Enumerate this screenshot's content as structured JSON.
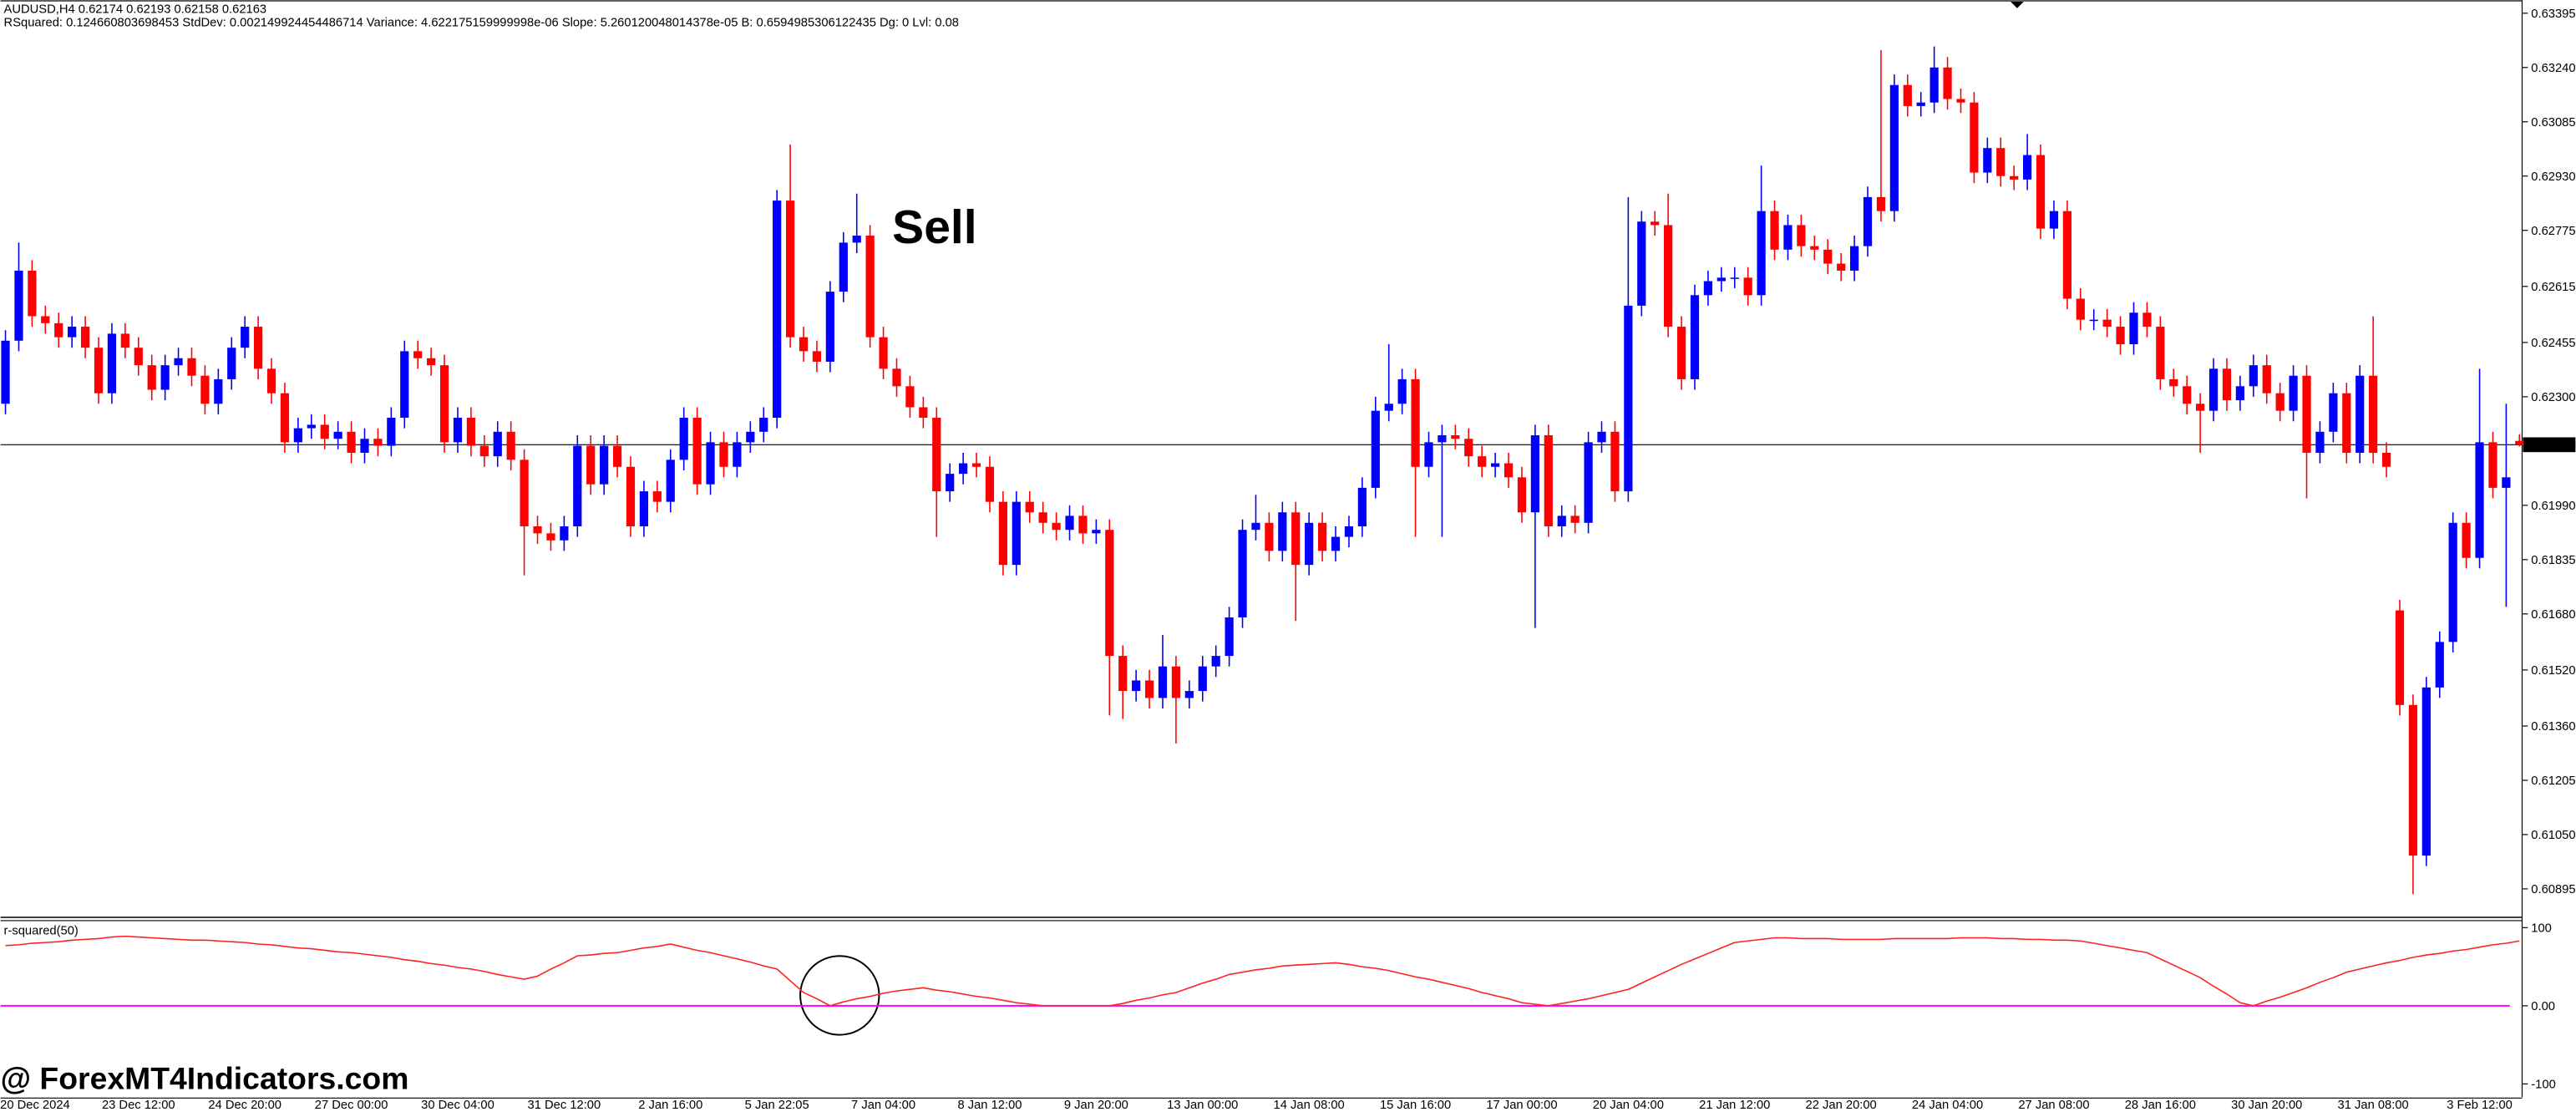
{
  "header": {
    "symbol_line": "AUDUSD,H4  0.62174 0.62193 0.62158 0.62163",
    "stats_line": "RSquared: 0.124660803698453 StdDev: 0.002149924454486714 Variance: 4.622175159999998e-06 Slope: 5.260120048014378e-05 B: 0.6594985306122435 Dg: 0 Lvl: 0.08"
  },
  "watermark": "@ ForexMT4Indicators.com",
  "chart_data": [
    {
      "type": "candlestick",
      "annotation": "Sell",
      "up_color": "#0000ff",
      "down_color": "#ff0000",
      "current_price": 0.62163,
      "ylim": [
        0.60816,
        0.63428
      ],
      "yticks": [
        0.63395,
        {
          "value": 0.6324,
          "label": "0.63240"
        },
        0.63085,
        {
          "value": 0.6293,
          "label": "0.62930"
        },
        0.62775,
        0.62615,
        0.62455,
        {
          "value": 0.623,
          "label": "0.62300"
        },
        {
          "value": 0.6199,
          "label": "0.61990"
        },
        0.61835,
        {
          "value": 0.6168,
          "label": "0.61680"
        },
        {
          "value": 0.6152,
          "label": "0.61520"
        },
        {
          "value": 0.6136,
          "label": "0.61360"
        },
        0.61205,
        {
          "value": 0.6105,
          "label": "0.61050"
        },
        0.60895
      ],
      "categories": [
        null,
        null,
        "20 Dec 2024",
        null,
        null,
        null,
        null,
        null,
        null,
        null,
        "23 Dec 12:00",
        null,
        null,
        null,
        null,
        null,
        null,
        null,
        "24 Dec 20:00",
        null,
        null,
        null,
        null,
        null,
        null,
        null,
        "27 Dec 00:00",
        null,
        null,
        null,
        null,
        null,
        null,
        null,
        "30 Dec 04:00",
        null,
        null,
        null,
        null,
        null,
        null,
        null,
        "31 Dec 12:00",
        null,
        null,
        null,
        null,
        null,
        null,
        null,
        "2 Jan 16:00",
        null,
        null,
        null,
        null,
        null,
        null,
        null,
        "5 Jan 22:05",
        null,
        null,
        null,
        null,
        null,
        null,
        null,
        "7 Jan 04:00",
        null,
        null,
        null,
        null,
        null,
        null,
        null,
        "8 Jan 12:00",
        null,
        null,
        null,
        null,
        null,
        null,
        null,
        "9 Jan 20:00",
        null,
        null,
        null,
        null,
        null,
        null,
        null,
        "13 Jan 00:00",
        null,
        null,
        null,
        null,
        null,
        null,
        null,
        "14 Jan 08:00",
        null,
        null,
        null,
        null,
        null,
        null,
        null,
        "15 Jan 16:00",
        null,
        null,
        null,
        null,
        null,
        null,
        null,
        "17 Jan 00:00",
        null,
        null,
        null,
        null,
        null,
        null,
        null,
        "20 Jan 04:00",
        null,
        null,
        null,
        null,
        null,
        null,
        null,
        "21 Jan 12:00",
        null,
        null,
        null,
        null,
        null,
        null,
        null,
        "22 Jan 20:00",
        null,
        null,
        null,
        null,
        null,
        null,
        null,
        "24 Jan 04:00",
        null,
        null,
        null,
        null,
        null,
        null,
        null,
        "27 Jan 08:00",
        null,
        null,
        null,
        null,
        null,
        null,
        null,
        "28 Jan 16:00",
        null,
        null,
        null,
        null,
        null,
        null,
        null,
        "30 Jan 20:00",
        null,
        null,
        null,
        null,
        null,
        null,
        null,
        "31 Jan 08:00",
        null,
        null,
        null,
        null,
        null,
        null,
        null,
        "3 Feb 12:00",
        null,
        null,
        null
      ],
      "open": [
        0.6228,
        0.6246,
        0.6266,
        0.6253,
        0.6251,
        0.6247,
        0.625,
        0.6244,
        0.6231,
        0.6248,
        0.6244,
        0.6239,
        0.6232,
        0.6239,
        0.6241,
        0.6236,
        0.6228,
        0.6235,
        0.6244,
        0.625,
        0.6238,
        0.6231,
        0.6217,
        0.6221,
        0.6222,
        0.6218,
        0.622,
        0.6214,
        0.6218,
        0.6216,
        0.6224,
        0.6243,
        0.6241,
        0.6239,
        0.6217,
        0.6224,
        0.6216,
        0.6213,
        0.622,
        0.6212,
        0.6193,
        0.6191,
        0.6189,
        0.6193,
        0.6216,
        0.6205,
        0.6216,
        0.621,
        0.6193,
        0.6203,
        0.62,
        0.6212,
        0.6224,
        0.6205,
        0.6217,
        0.621,
        0.6217,
        0.622,
        0.6224,
        0.6286,
        0.6247,
        0.6243,
        0.624,
        0.626,
        0.6274,
        0.6276,
        0.6247,
        0.6238,
        0.6233,
        0.6227,
        0.6224,
        0.6203,
        0.6208,
        0.6211,
        0.621,
        0.62,
        0.6182,
        0.62,
        0.6197,
        0.6194,
        0.6192,
        0.6196,
        0.6191,
        0.6192,
        0.6156,
        0.6146,
        0.6149,
        0.6144,
        0.6153,
        0.6144,
        0.6146,
        0.6153,
        0.6156,
        0.6167,
        0.6192,
        0.6194,
        0.6186,
        0.6197,
        0.6182,
        0.6194,
        0.6186,
        0.619,
        0.6193,
        0.6204,
        0.6226,
        0.6228,
        0.6235,
        0.621,
        0.6217,
        0.6219,
        0.6218,
        0.6213,
        0.621,
        0.6211,
        0.6207,
        0.6197,
        0.6219,
        0.6193,
        0.6196,
        0.6194,
        0.6217,
        0.622,
        0.6203,
        0.6256,
        0.628,
        0.6279,
        0.625,
        0.6235,
        0.6259,
        0.6263,
        0.6264,
        0.6264,
        0.6259,
        0.6283,
        0.6272,
        0.6279,
        0.6273,
        0.6272,
        0.6268,
        0.6266,
        0.6273,
        0.6287,
        0.6283,
        0.6319,
        0.6313,
        0.6314,
        0.6324,
        0.6315,
        0.6314,
        0.6294,
        0.6301,
        0.6293,
        0.6292,
        0.6299,
        0.6278,
        0.6283,
        0.6258,
        0.6252,
        0.6252,
        0.625,
        0.6245,
        0.6254,
        0.625,
        0.6235,
        0.6233,
        0.6228,
        0.6226,
        0.6238,
        0.6229,
        0.6233,
        0.6239,
        0.6231,
        0.6226,
        0.6236,
        0.6214,
        0.622,
        0.6231,
        0.6214,
        0.6236,
        0.6214,
        0.6169,
        0.6142,
        0.6099,
        0.6147,
        0.616,
        0.6194,
        0.6184,
        0.6217,
        0.6204,
        0.62174
      ],
      "high": [
        0.6249,
        0.6274,
        0.6269,
        0.6256,
        0.6254,
        0.6253,
        0.6253,
        0.6247,
        0.6251,
        0.6251,
        0.6247,
        0.6242,
        0.6242,
        0.6244,
        0.6244,
        0.6239,
        0.6238,
        0.6247,
        0.6253,
        0.6253,
        0.6241,
        0.6234,
        0.6224,
        0.6225,
        0.6225,
        0.6223,
        0.6223,
        0.6221,
        0.6221,
        0.6227,
        0.6246,
        0.6246,
        0.6244,
        0.6242,
        0.6227,
        0.6227,
        0.6219,
        0.6223,
        0.6223,
        0.6215,
        0.6196,
        0.6194,
        0.6196,
        0.6219,
        0.6219,
        0.6219,
        0.6219,
        0.6213,
        0.6206,
        0.6206,
        0.6215,
        0.6227,
        0.6227,
        0.622,
        0.622,
        0.622,
        0.6223,
        0.6227,
        0.6289,
        0.6302,
        0.625,
        0.6246,
        0.6263,
        0.6277,
        0.6288,
        0.6279,
        0.625,
        0.6241,
        0.6236,
        0.623,
        0.6227,
        0.6211,
        0.6214,
        0.6214,
        0.6213,
        0.6203,
        0.6203,
        0.6203,
        0.62,
        0.6197,
        0.6199,
        0.6199,
        0.6195,
        0.6195,
        0.6159,
        0.6152,
        0.6152,
        0.6162,
        0.6156,
        0.6149,
        0.6156,
        0.6159,
        0.617,
        0.6195,
        0.6202,
        0.6197,
        0.62,
        0.62,
        0.6197,
        0.6197,
        0.6193,
        0.6196,
        0.6207,
        0.623,
        0.6245,
        0.6238,
        0.6238,
        0.622,
        0.6222,
        0.6222,
        0.6221,
        0.6216,
        0.6214,
        0.6214,
        0.621,
        0.6222,
        0.6222,
        0.6199,
        0.6199,
        0.622,
        0.6223,
        0.6223,
        0.6287,
        0.6283,
        0.6283,
        0.6288,
        0.6253,
        0.6262,
        0.6266,
        0.6267,
        0.6267,
        0.6267,
        0.6296,
        0.6286,
        0.6282,
        0.6282,
        0.6276,
        0.6275,
        0.6271,
        0.6276,
        0.629,
        0.6329,
        0.6322,
        0.6322,
        0.6317,
        0.633,
        0.6327,
        0.6318,
        0.6317,
        0.6304,
        0.6304,
        0.6296,
        0.6305,
        0.6302,
        0.6286,
        0.6286,
        0.6261,
        0.6255,
        0.6255,
        0.6253,
        0.6257,
        0.6257,
        0.6253,
        0.6238,
        0.6236,
        0.6231,
        0.6241,
        0.6241,
        0.6236,
        0.6242,
        0.6242,
        0.6234,
        0.6239,
        0.6239,
        0.6223,
        0.6234,
        0.6234,
        0.6239,
        0.6253,
        0.6217,
        0.6172,
        0.6145,
        0.615,
        0.6163,
        0.6197,
        0.6197,
        0.6238,
        0.622,
        0.6228,
        0.62193
      ],
      "low": [
        0.6225,
        0.6243,
        0.625,
        0.6248,
        0.6244,
        0.6244,
        0.6241,
        0.6228,
        0.6228,
        0.6241,
        0.6236,
        0.6229,
        0.6229,
        0.6236,
        0.6233,
        0.6225,
        0.6225,
        0.6232,
        0.6241,
        0.6235,
        0.6228,
        0.6214,
        0.6214,
        0.6218,
        0.6215,
        0.6215,
        0.6211,
        0.6211,
        0.6213,
        0.6213,
        0.6221,
        0.6238,
        0.6236,
        0.6214,
        0.6214,
        0.6213,
        0.621,
        0.621,
        0.6209,
        0.6179,
        0.6188,
        0.6186,
        0.6186,
        0.619,
        0.6202,
        0.6202,
        0.6207,
        0.619,
        0.619,
        0.6197,
        0.6197,
        0.6209,
        0.6202,
        0.6202,
        0.6207,
        0.6207,
        0.6214,
        0.6217,
        0.6221,
        0.6244,
        0.624,
        0.6237,
        0.6237,
        0.6257,
        0.6271,
        0.6244,
        0.6235,
        0.623,
        0.6224,
        0.6221,
        0.619,
        0.62,
        0.6205,
        0.6207,
        0.6197,
        0.6179,
        0.6179,
        0.6194,
        0.6191,
        0.6189,
        0.6189,
        0.6188,
        0.6188,
        0.6139,
        0.6138,
        0.6143,
        0.6141,
        0.6141,
        0.6131,
        0.6141,
        0.6143,
        0.615,
        0.6153,
        0.6164,
        0.6189,
        0.6183,
        0.6183,
        0.6166,
        0.6179,
        0.6183,
        0.6183,
        0.6187,
        0.619,
        0.6201,
        0.6223,
        0.6225,
        0.619,
        0.6207,
        0.619,
        0.6215,
        0.621,
        0.6207,
        0.6207,
        0.6204,
        0.6194,
        0.6164,
        0.619,
        0.619,
        0.6191,
        0.6191,
        0.6214,
        0.62,
        0.62,
        0.6253,
        0.6276,
        0.6247,
        0.6232,
        0.6232,
        0.6256,
        0.626,
        0.6261,
        0.6256,
        0.6256,
        0.6269,
        0.6269,
        0.627,
        0.6269,
        0.6265,
        0.6263,
        0.6263,
        0.627,
        0.628,
        0.628,
        0.631,
        0.631,
        0.6311,
        0.6312,
        0.6311,
        0.6291,
        0.6291,
        0.629,
        0.6289,
        0.6289,
        0.6275,
        0.6275,
        0.6255,
        0.6249,
        0.6249,
        0.6247,
        0.6242,
        0.6242,
        0.6247,
        0.6232,
        0.623,
        0.6225,
        0.6214,
        0.6223,
        0.6226,
        0.6226,
        0.623,
        0.6228,
        0.6223,
        0.6223,
        0.6201,
        0.6211,
        0.6217,
        0.6211,
        0.6211,
        0.6211,
        0.6207,
        0.6139,
        0.6088,
        0.6096,
        0.6144,
        0.6157,
        0.6181,
        0.6181,
        0.6201,
        0.617,
        0.62158
      ],
      "close": [
        0.6246,
        0.6266,
        0.6253,
        0.6251,
        0.6247,
        0.625,
        0.6244,
        0.6231,
        0.6248,
        0.6244,
        0.6239,
        0.6232,
        0.6239,
        0.6241,
        0.6236,
        0.6228,
        0.6235,
        0.6244,
        0.625,
        0.6238,
        0.6231,
        0.6217,
        0.6221,
        0.6222,
        0.6218,
        0.622,
        0.6214,
        0.6218,
        0.6216,
        0.6224,
        0.6243,
        0.6241,
        0.6239,
        0.6217,
        0.6224,
        0.6216,
        0.6213,
        0.622,
        0.6212,
        0.6193,
        0.6191,
        0.6189,
        0.6193,
        0.6216,
        0.6205,
        0.6216,
        0.621,
        0.6193,
        0.6203,
        0.62,
        0.6212,
        0.6224,
        0.6205,
        0.6217,
        0.621,
        0.6217,
        0.622,
        0.6224,
        0.6286,
        0.6247,
        0.6243,
        0.624,
        0.626,
        0.6274,
        0.6276,
        0.6247,
        0.6238,
        0.6233,
        0.6227,
        0.6224,
        0.6203,
        0.6208,
        0.6211,
        0.621,
        0.62,
        0.6182,
        0.62,
        0.6197,
        0.6194,
        0.6192,
        0.6196,
        0.6191,
        0.6192,
        0.6156,
        0.6146,
        0.6149,
        0.6144,
        0.6153,
        0.6144,
        0.6146,
        0.6153,
        0.6156,
        0.6167,
        0.6192,
        0.6194,
        0.6186,
        0.6197,
        0.6182,
        0.6194,
        0.6186,
        0.619,
        0.6193,
        0.6204,
        0.6226,
        0.6228,
        0.6235,
        0.621,
        0.6217,
        0.6219,
        0.6218,
        0.6213,
        0.621,
        0.6211,
        0.6207,
        0.6197,
        0.6219,
        0.6193,
        0.6196,
        0.6194,
        0.6217,
        0.622,
        0.6203,
        0.6256,
        0.628,
        0.6279,
        0.625,
        0.6235,
        0.6259,
        0.6263,
        0.6264,
        0.6264,
        0.6259,
        0.6283,
        0.6272,
        0.6279,
        0.6273,
        0.6272,
        0.6268,
        0.6266,
        0.6273,
        0.6287,
        0.6283,
        0.6319,
        0.6313,
        0.6314,
        0.6324,
        0.6315,
        0.6314,
        0.6294,
        0.6301,
        0.6293,
        0.6292,
        0.6299,
        0.6278,
        0.6283,
        0.6258,
        0.6252,
        0.6252,
        0.625,
        0.6245,
        0.6254,
        0.625,
        0.6235,
        0.6233,
        0.6228,
        0.6226,
        0.6238,
        0.6229,
        0.6233,
        0.6239,
        0.6231,
        0.6226,
        0.6236,
        0.6214,
        0.622,
        0.6231,
        0.6214,
        0.6236,
        0.6214,
        0.621,
        0.6142,
        0.6099,
        0.6147,
        0.616,
        0.6194,
        0.6184,
        0.6217,
        0.6204,
        0.6207,
        0.62163
      ]
    },
    {
      "type": "line",
      "title": "r-squared(50)",
      "color": "#ff2020",
      "reference_line": 0,
      "reference_color": "#ff00ff",
      "ylim": [
        -117,
        110
      ],
      "yticks": [
        100,
        {
          "value": 0,
          "label": "0.00"
        },
        -100
      ],
      "values": [
        77,
        78,
        80,
        81,
        82,
        84,
        85,
        86,
        88,
        89,
        88,
        87,
        86,
        85,
        84,
        84,
        83,
        82,
        81,
        79,
        78,
        76,
        74,
        73,
        71,
        69,
        68,
        66,
        64,
        62,
        59,
        57,
        54,
        52,
        49,
        47,
        44,
        40,
        37,
        34,
        38,
        47,
        55,
        64,
        65,
        67,
        68,
        71,
        74,
        76,
        79,
        75,
        71,
        68,
        64,
        60,
        56,
        51,
        47,
        32,
        17,
        9,
        0,
        5,
        9,
        12,
        16,
        19,
        21,
        23,
        20,
        18,
        15,
        12,
        10,
        7,
        4,
        2,
        0,
        0,
        0,
        0,
        0,
        0,
        3,
        7,
        10,
        14,
        17,
        23,
        29,
        34,
        40,
        43,
        46,
        48,
        51,
        52,
        53,
        54,
        55,
        53,
        50,
        48,
        45,
        41,
        37,
        34,
        30,
        26,
        22,
        17,
        13,
        9,
        4,
        2,
        0,
        3,
        6,
        9,
        13,
        17,
        21,
        29,
        37,
        45,
        53,
        60,
        67,
        74,
        81,
        83,
        85,
        87,
        87,
        86,
        86,
        86,
        85,
        85,
        85,
        85,
        86,
        86,
        86,
        86,
        86,
        87,
        87,
        87,
        86,
        86,
        85,
        85,
        84,
        84,
        83,
        80,
        77,
        74,
        71,
        68,
        60,
        52,
        44,
        36,
        25,
        15,
        4,
        0,
        6,
        11,
        17,
        23,
        30,
        36,
        43,
        47,
        51,
        55,
        58,
        62,
        65,
        67,
        70,
        72,
        75,
        78,
        80,
        83
      ]
    }
  ]
}
